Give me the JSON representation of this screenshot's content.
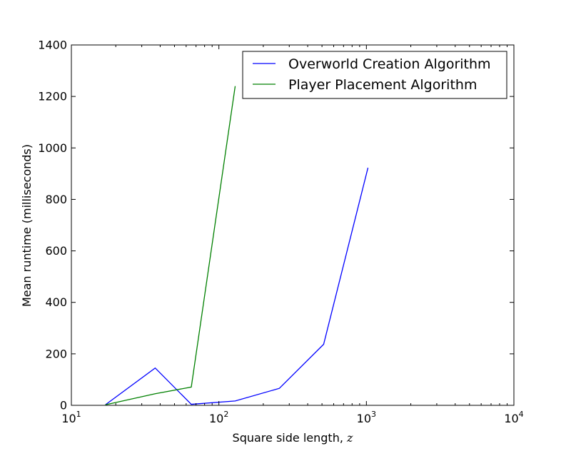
{
  "chart_data": {
    "type": "line",
    "xscale": "log",
    "xlim": [
      10,
      10000
    ],
    "ylim": [
      0,
      1400
    ],
    "xlabel": "Square side length, z",
    "xlabel_text": "Square side length, ",
    "xlabel_var": "z",
    "ylabel": "Mean runtime (milliseconds)",
    "x_ticks": [
      {
        "value": 10,
        "base": "10",
        "exp": "1"
      },
      {
        "value": 100,
        "base": "10",
        "exp": "2"
      },
      {
        "value": 1000,
        "base": "10",
        "exp": "3"
      },
      {
        "value": 10000,
        "base": "10",
        "exp": "4"
      }
    ],
    "y_ticks": [
      0,
      200,
      400,
      600,
      800,
      1000,
      1200,
      1400
    ],
    "legend_position": "top-right",
    "grid": false,
    "series": [
      {
        "name": "Overworld Creation Algorithm",
        "color": "#0000ff",
        "x": [
          17,
          37,
          65,
          129,
          257,
          513,
          1025
        ],
        "y": [
          2,
          145,
          4,
          17,
          66,
          237,
          923
        ]
      },
      {
        "name": "Player Placement Algorithm",
        "color": "#008000",
        "x": [
          17,
          37,
          65,
          129
        ],
        "y": [
          2,
          45,
          71,
          1240
        ]
      }
    ]
  }
}
